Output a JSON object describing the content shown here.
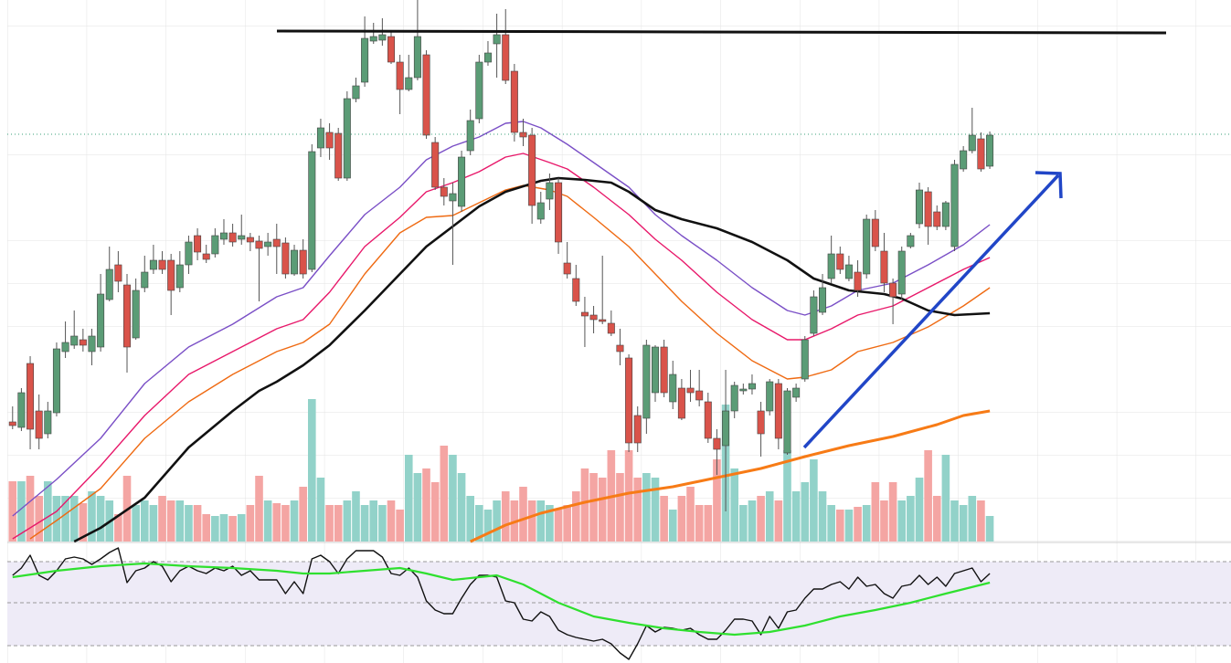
{
  "chart_data": [
    {
      "type": "candlestick",
      "xlim": [
        -0.6,
        138.4
      ],
      "ylim": [
        7,
        600
      ],
      "up_color": "#5b9c76",
      "down_color": "#d9534a",
      "open": [
        138,
        132,
        202,
        150,
        125,
        148,
        215,
        222,
        228,
        215,
        220,
        272,
        310,
        288,
        230,
        285,
        305,
        315,
        315,
        285,
        310,
        342,
        322,
        322,
        338,
        345,
        338,
        340,
        336,
        330,
        338,
        334,
        300,
        326,
        305,
        438,
        455,
        454,
        405,
        492,
        510,
        555,
        556,
        560,
        532,
        502,
        515,
        540,
        444,
        395,
        380,
        374,
        435,
        470,
        532,
        552,
        562,
        522,
        455,
        452,
        360,
        382,
        400,
        312,
        295,
        258,
        255,
        250,
        246,
        222,
        208,
        145,
        142,
        170,
        220,
        160,
        175,
        175,
        172,
        160,
        120,
        112,
        150,
        172,
        174,
        150,
        150,
        180,
        104,
        165,
        185,
        235,
        258,
        295,
        322,
        295,
        302,
        300,
        360,
        325,
        290,
        278,
        330,
        355,
        390,
        368,
        352,
        330,
        415,
        435,
        448,
        418
      ],
      "high": [
        155,
        175,
        210,
        168,
        160,
        225,
        248,
        260,
        240,
        240,
        300,
        330,
        325,
        300,
        295,
        320,
        332,
        325,
        322,
        325,
        342,
        350,
        332,
        350,
        360,
        355,
        365,
        345,
        342,
        345,
        355,
        340,
        332,
        338,
        442,
        470,
        465,
        460,
        500,
        515,
        582,
        575,
        580,
        565,
        540,
        540,
        600,
        545,
        450,
        405,
        400,
        435,
        480,
        540,
        555,
        585,
        590,
        530,
        470,
        460,
        390,
        410,
        405,
        335,
        310,
        275,
        265,
        320,
        260,
        240,
        212,
        155,
        228,
        222,
        228,
        205,
        185,
        195,
        195,
        170,
        130,
        195,
        182,
        180,
        190,
        160,
        185,
        185,
        175,
        180,
        232,
        282,
        300,
        342,
        330,
        320,
        315,
        365,
        370,
        345,
        295,
        330,
        345,
        400,
        395,
        375,
        380,
        425,
        440,
        482,
        455,
        456
      ],
      "low": [
        130,
        128,
        108,
        108,
        120,
        144,
        208,
        218,
        215,
        200,
        215,
        270,
        280,
        192,
        228,
        280,
        300,
        300,
        255,
        280,
        300,
        315,
        312,
        318,
        332,
        330,
        332,
        325,
        270,
        320,
        300,
        295,
        298,
        295,
        302,
        428,
        425,
        402,
        402,
        488,
        505,
        552,
        550,
        530,
        475,
        500,
        512,
        448,
        392,
        375,
        310,
        368,
        430,
        465,
        528,
        515,
        508,
        445,
        440,
        355,
        355,
        370,
        322,
        295,
        265,
        220,
        235,
        245,
        232,
        200,
        105,
        105,
        125,
        160,
        165,
        152,
        140,
        160,
        155,
        115,
        80,
        40,
        142,
        168,
        168,
        100,
        145,
        108,
        102,
        160,
        182,
        232,
        255,
        290,
        300,
        292,
        275,
        295,
        325,
        280,
        245,
        272,
        328,
        350,
        332,
        348,
        348,
        325,
        412,
        432,
        412,
        415
      ],
      "close": [
        134,
        170,
        130,
        120,
        150,
        218,
        225,
        232,
        222,
        232,
        278,
        305,
        292,
        220,
        282,
        302,
        315,
        305,
        282,
        310,
        335,
        324,
        316,
        342,
        345,
        335,
        342,
        335,
        328,
        335,
        330,
        300,
        326,
        300,
        434,
        460,
        438,
        405,
        492,
        506,
        558,
        560,
        562,
        532,
        502,
        515,
        560,
        452,
        395,
        385,
        388,
        428,
        468,
        532,
        542,
        562,
        512,
        455,
        450,
        375,
        378,
        400,
        335,
        300,
        270,
        254,
        250,
        248,
        235,
        215,
        115,
        115,
        222,
        220,
        170,
        190,
        142,
        170,
        162,
        120,
        108,
        150,
        178,
        174,
        180,
        125,
        182,
        120,
        172,
        175,
        228,
        275,
        285,
        322,
        305,
        310,
        282,
        360,
        330,
        290,
        275,
        325,
        342,
        392,
        352,
        352,
        378,
        420,
        435,
        452,
        415,
        452
      ],
      "volume": {
        "ylim": [
          0,
          593
        ],
        "up_color": "#92d2c9",
        "down_color": "#f4a5a3",
        "values": [
          66,
          66,
          72,
          50,
          66,
          50,
          50,
          50,
          42,
          55,
          50,
          45,
          30,
          72,
          40,
          45,
          40,
          50,
          45,
          45,
          40,
          40,
          30,
          28,
          30,
          28,
          30,
          40,
          72,
          45,
          42,
          40,
          45,
          60,
          156,
          70,
          40,
          40,
          45,
          55,
          40,
          45,
          40,
          45,
          35,
          95,
          75,
          80,
          65,
          105,
          95,
          75,
          50,
          40,
          35,
          45,
          55,
          45,
          60,
          45,
          45,
          40,
          35,
          40,
          55,
          80,
          75,
          70,
          100,
          75,
          100,
          70,
          75,
          70,
          50,
          35,
          50,
          60,
          40,
          40,
          90,
          150,
          80,
          40,
          45,
          50,
          55,
          45,
          100,
          55,
          65,
          90,
          55,
          40,
          35,
          35,
          38,
          40,
          65,
          45,
          65,
          45,
          50,
          70,
          100,
          50,
          95,
          45,
          40,
          50,
          45,
          28
        ]
      },
      "series": [
        {
          "color": "#7a4fc6",
          "line_width": 1.4,
          "x": [
            0,
            5,
            10,
            15,
            20,
            25,
            30,
            33,
            36,
            40,
            44,
            47,
            50,
            53,
            56,
            58,
            60,
            63,
            66,
            70,
            73,
            76,
            80,
            84,
            88,
            90,
            93,
            96,
            100,
            104,
            108,
            111
          ],
          "values": [
            35,
            75,
            120,
            180,
            220,
            245,
            275,
            285,
            320,
            365,
            395,
            425,
            440,
            450,
            465,
            467,
            460,
            442,
            422,
            395,
            365,
            342,
            315,
            285,
            260,
            255,
            265,
            282,
            290,
            310,
            332,
            354
          ]
        },
        {
          "color": "#e8186a",
          "line_width": 1.4,
          "x": [
            0,
            5,
            10,
            15,
            20,
            25,
            30,
            33,
            36,
            40,
            44,
            47,
            50,
            53,
            56,
            58,
            61,
            63,
            66,
            70,
            73,
            76,
            80,
            84,
            88,
            90,
            93,
            96,
            100,
            104,
            108,
            111
          ],
          "values": [
            10,
            40,
            90,
            145,
            190,
            215,
            240,
            250,
            280,
            330,
            362,
            390,
            400,
            412,
            428,
            432,
            422,
            415,
            395,
            365,
            338,
            315,
            280,
            250,
            228,
            228,
            240,
            255,
            265,
            285,
            305,
            318
          ]
        },
        {
          "color": "#ef6a12",
          "line_width": 1.4,
          "x": [
            2,
            5,
            10,
            15,
            20,
            25,
            30,
            33,
            36,
            40,
            44,
            47,
            50,
            53,
            56,
            58,
            61,
            63,
            66,
            70,
            73,
            76,
            80,
            84,
            88,
            90,
            93,
            96,
            100,
            104,
            108,
            111
          ],
          "values": [
            10,
            30,
            65,
            120,
            160,
            190,
            215,
            225,
            245,
            300,
            345,
            362,
            364,
            378,
            392,
            397,
            392,
            385,
            362,
            330,
            300,
            270,
            235,
            205,
            185,
            187,
            195,
            215,
            225,
            242,
            265,
            285
          ]
        },
        {
          "color": "#111111",
          "line_width": 2.6,
          "x": [
            7,
            10,
            15,
            20,
            25,
            28,
            30,
            33,
            36,
            40,
            44,
            47,
            50,
            53,
            56,
            58,
            60,
            62,
            65,
            68,
            70,
            73,
            76,
            80,
            84,
            88,
            91,
            95,
            99,
            101,
            104,
            107,
            109,
            111
          ],
          "values": [
            7,
            22,
            55,
            110,
            150,
            172,
            182,
            200,
            222,
            260,
            300,
            330,
            352,
            374,
            390,
            396,
            402,
            405,
            403,
            400,
            390,
            370,
            360,
            350,
            335,
            315,
            295,
            282,
            278,
            273,
            260,
            255,
            256,
            257
          ]
        },
        {
          "color": "#f77b16",
          "line_width": 3,
          "x": [
            52,
            56,
            60,
            65,
            70,
            75,
            80,
            85,
            90,
            95,
            100,
            105,
            108,
            111
          ],
          "values": [
            7,
            25,
            38,
            50,
            60,
            67,
            77,
            87,
            100,
            112,
            122,
            135,
            145,
            150
          ]
        }
      ]
    },
    {
      "type": "line",
      "xlim": [
        -0.6,
        138.4
      ],
      "ylim": [
        4,
        135
      ],
      "levels": [
        23,
        70,
        115
      ],
      "band_color": "#eeebf7",
      "series": [
        {
          "color": "#111111",
          "line_width": 1.4,
          "x": [
            0,
            1,
            2,
            3,
            4,
            5,
            6,
            7,
            8,
            9,
            10,
            11,
            12,
            13,
            14,
            15,
            16,
            17,
            18,
            19,
            20,
            21,
            22,
            23,
            24,
            25,
            26,
            27,
            28,
            29,
            30,
            31,
            32,
            33,
            34,
            35,
            36,
            37,
            38,
            39,
            40,
            41,
            42,
            43,
            44,
            45,
            46,
            47,
            48,
            49,
            50,
            51,
            52,
            53,
            54,
            55,
            56,
            57,
            58,
            59,
            60,
            61,
            62,
            63,
            64,
            65,
            66,
            67,
            68,
            69,
            70,
            71,
            72,
            73,
            74,
            75,
            76,
            77,
            78,
            79,
            80,
            81,
            82,
            83,
            84,
            85,
            86,
            87,
            88,
            89,
            90,
            91,
            92,
            93,
            94,
            95,
            96,
            97,
            98,
            99,
            100,
            101,
            102,
            103,
            104,
            105,
            106,
            107,
            108,
            109,
            110,
            111
          ],
          "values": [
            100,
            108,
            122,
            100,
            95,
            105,
            118,
            120,
            118,
            112,
            118,
            125,
            130,
            92,
            105,
            108,
            115,
            110,
            93,
            105,
            110,
            105,
            102,
            108,
            105,
            110,
            100,
            105,
            95,
            95,
            95,
            80,
            93,
            80,
            118,
            122,
            115,
            102,
            118,
            127,
            127,
            127,
            120,
            102,
            100,
            108,
            98,
            72,
            62,
            58,
            58,
            75,
            90,
            100,
            100,
            98,
            72,
            70,
            52,
            50,
            60,
            55,
            40,
            35,
            32,
            30,
            28,
            30,
            25,
            15,
            8,
            25,
            45,
            38,
            43,
            42,
            40,
            42,
            35,
            30,
            30,
            40,
            52,
            52,
            50,
            35,
            55,
            42,
            60,
            62,
            75,
            85,
            85,
            90,
            93,
            85,
            98,
            88,
            90,
            80,
            75,
            88,
            90,
            100,
            90,
            98,
            88,
            102,
            105,
            108,
            93,
            102
          ]
        },
        {
          "color": "#2fe02f",
          "line_width": 2.2,
          "x": [
            0,
            5,
            10,
            15,
            20,
            25,
            30,
            33,
            36,
            40,
            44,
            47,
            50,
            53,
            55,
            58,
            62,
            66,
            70,
            74,
            78,
            82,
            86,
            90,
            94,
            98,
            102,
            106,
            111
          ],
          "values": [
            98,
            105,
            110,
            113,
            110,
            108,
            105,
            102,
            102,
            105,
            108,
            102,
            95,
            98,
            100,
            90,
            70,
            55,
            48,
            42,
            38,
            35,
            38,
            45,
            55,
            62,
            70,
            80,
            92
          ]
        }
      ]
    }
  ]
}
